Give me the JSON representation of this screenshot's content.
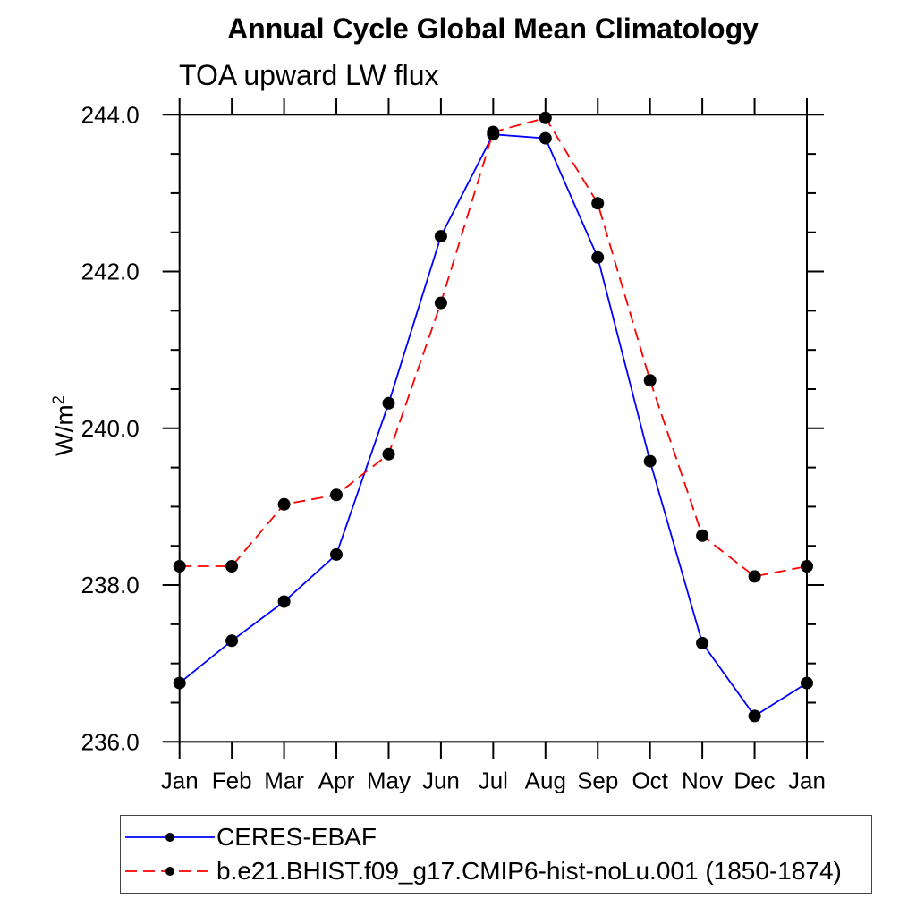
{
  "chart_data": {
    "type": "line",
    "title": "Annual Cycle Global Mean Climatology",
    "subtitle": "TOA upward LW flux",
    "ylabel_base": "W/m",
    "ylabel_exponent": "2",
    "x_tick_labels": [
      "Jan",
      "Feb",
      "Mar",
      "Apr",
      "May",
      "Jun",
      "Jul",
      "Aug",
      "Sep",
      "Oct",
      "Nov",
      "Dec",
      "Jan"
    ],
    "ylim": [
      236.0,
      244.0
    ],
    "ytick_major": [
      236.0,
      238.0,
      240.0,
      242.0,
      244.0
    ],
    "ytick_labels": [
      "236.0",
      "238.0",
      "240.0",
      "242.0",
      "244.0"
    ],
    "ytick_minor_step": 0.5,
    "grid": false,
    "legend_position": "bottom-left",
    "frame_color": "#000000",
    "marker_shape": "filled-circle",
    "series": [
      {
        "name": "CERES-EBAF",
        "line_color": "#0000ff",
        "line_style": "solid",
        "marker_color": "#000000",
        "values": [
          236.75,
          237.29,
          237.79,
          238.39,
          240.32,
          242.45,
          243.75,
          243.7,
          242.18,
          239.58,
          237.26,
          236.33,
          236.75
        ]
      },
      {
        "name": "b.e21.BHIST.f09_g17.CMIP6-hist-noLu.001 (1850-1874)",
        "line_color": "#ff0000",
        "line_style": "dashed",
        "marker_color": "#000000",
        "values": [
          238.24,
          238.24,
          239.03,
          239.15,
          239.67,
          241.6,
          243.78,
          243.96,
          242.87,
          240.61,
          238.63,
          238.11,
          238.24
        ]
      }
    ]
  }
}
